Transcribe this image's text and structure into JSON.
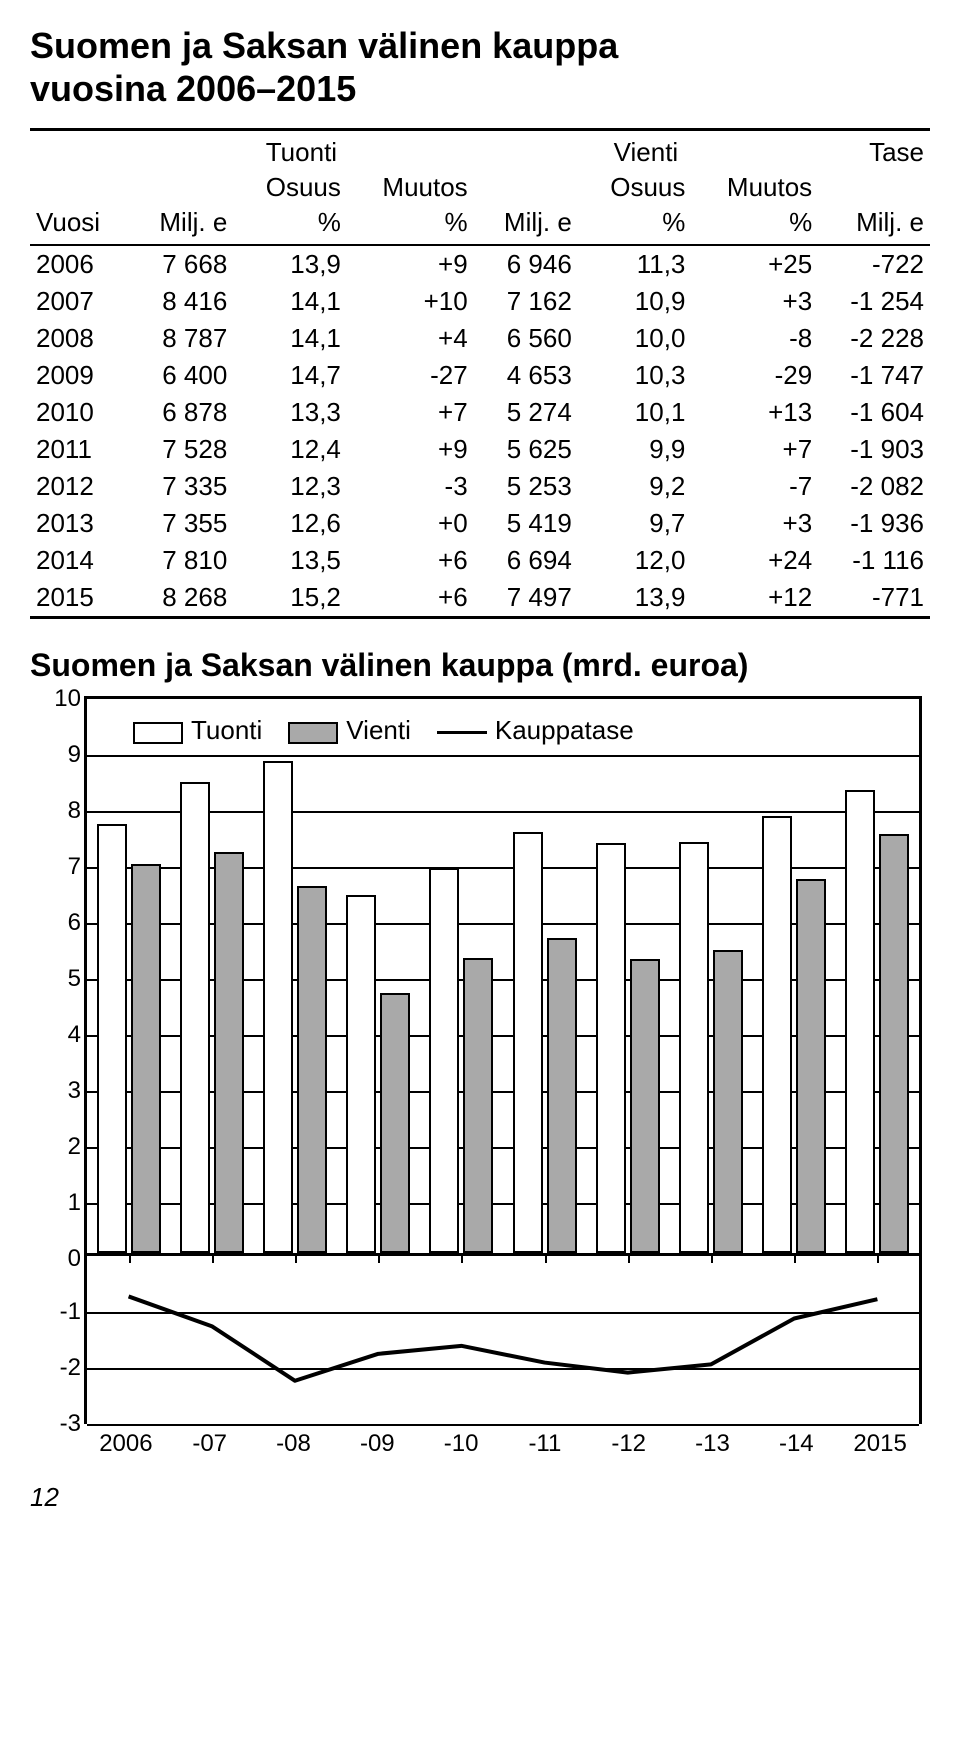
{
  "title_line1": "Suomen ja Saksan välinen kauppa",
  "title_line2": "vuosina 2006–2015",
  "table": {
    "group_headers": {
      "tuonti": "Tuonti",
      "vienti": "Vienti",
      "tase": "Tase"
    },
    "headers": {
      "vuosi": "Vuosi",
      "milj_e": "Milj. e",
      "osuus": "Osuus\n%",
      "muutos": "Muutos\n%"
    },
    "rows": [
      {
        "year": "2006",
        "t_milj": "7 668",
        "t_os": "13,9",
        "t_mu": "+9",
        "v_milj": "6 946",
        "v_os": "11,3",
        "v_mu": "+25",
        "tase": "-722"
      },
      {
        "year": "2007",
        "t_milj": "8 416",
        "t_os": "14,1",
        "t_mu": "+10",
        "v_milj": "7 162",
        "v_os": "10,9",
        "v_mu": "+3",
        "tase": "-1 254"
      },
      {
        "year": "2008",
        "t_milj": "8 787",
        "t_os": "14,1",
        "t_mu": "+4",
        "v_milj": "6 560",
        "v_os": "10,0",
        "v_mu": "-8",
        "tase": "-2 228"
      },
      {
        "year": "2009",
        "t_milj": "6 400",
        "t_os": "14,7",
        "t_mu": "-27",
        "v_milj": "4 653",
        "v_os": "10,3",
        "v_mu": "-29",
        "tase": "-1 747"
      },
      {
        "year": "2010",
        "t_milj": "6 878",
        "t_os": "13,3",
        "t_mu": "+7",
        "v_milj": "5 274",
        "v_os": "10,1",
        "v_mu": "+13",
        "tase": "-1 604"
      },
      {
        "year": "2011",
        "t_milj": "7 528",
        "t_os": "12,4",
        "t_mu": "+9",
        "v_milj": "5 625",
        "v_os": "9,9",
        "v_mu": "+7",
        "tase": "-1 903"
      },
      {
        "year": "2012",
        "t_milj": "7 335",
        "t_os": "12,3",
        "t_mu": "-3",
        "v_milj": "5 253",
        "v_os": "9,2",
        "v_mu": "-7",
        "tase": "-2 082"
      },
      {
        "year": "2013",
        "t_milj": "7 355",
        "t_os": "12,6",
        "t_mu": "+0",
        "v_milj": "5 419",
        "v_os": "9,7",
        "v_mu": "+3",
        "tase": "-1 936"
      },
      {
        "year": "2014",
        "t_milj": "7 810",
        "t_os": "13,5",
        "t_mu": "+6",
        "v_milj": "6 694",
        "v_os": "12,0",
        "v_mu": "+24",
        "tase": "-1 116"
      },
      {
        "year": "2015",
        "t_milj": "8 268",
        "t_os": "15,2",
        "t_mu": "+6",
        "v_milj": "7 497",
        "v_os": "13,9",
        "v_mu": "+12",
        "tase": "-771"
      }
    ]
  },
  "chart": {
    "title": "Suomen ja Saksan välinen kauppa (mrd. euroa)",
    "legend": {
      "tuonti": "Tuonti",
      "vienti": "Vienti",
      "tase": "Kauppatase"
    },
    "colors": {
      "tuonti_fill": "#ffffff",
      "vienti_fill": "#a9a9a9",
      "border": "#000000",
      "line": "#000000",
      "background": "#ffffff",
      "grid": "#000000"
    },
    "upper_ymax": 10,
    "upper_ymin": 0,
    "lower_ymax": 0,
    "lower_ymin": -3,
    "y_ticks_upper": [
      0,
      1,
      2,
      3,
      4,
      5,
      6,
      7,
      8,
      9,
      10
    ],
    "y_ticks_lower": [
      -1,
      -2,
      -3
    ],
    "x_labels": [
      "2006",
      "-07",
      "-08",
      "-09",
      "-10",
      "-11",
      "-12",
      "-13",
      "-14",
      "2015"
    ],
    "bar_width_pct": 3.6,
    "group_gap_pct": 0.5,
    "series": [
      {
        "tuonti": 7.668,
        "vienti": 6.946,
        "tase": -0.722
      },
      {
        "tuonti": 8.416,
        "vienti": 7.162,
        "tase": -1.254
      },
      {
        "tuonti": 8.787,
        "vienti": 6.56,
        "tase": -2.228
      },
      {
        "tuonti": 6.4,
        "vienti": 4.653,
        "tase": -1.747
      },
      {
        "tuonti": 6.878,
        "vienti": 5.274,
        "tase": -1.604
      },
      {
        "tuonti": 7.528,
        "vienti": 5.625,
        "tase": -1.903
      },
      {
        "tuonti": 7.335,
        "vienti": 5.253,
        "tase": -2.082
      },
      {
        "tuonti": 7.355,
        "vienti": 5.419,
        "tase": -1.936
      },
      {
        "tuonti": 7.81,
        "vienti": 6.694,
        "tase": -1.116
      },
      {
        "tuonti": 8.268,
        "vienti": 7.497,
        "tase": -0.771
      }
    ]
  },
  "page_number": "12"
}
